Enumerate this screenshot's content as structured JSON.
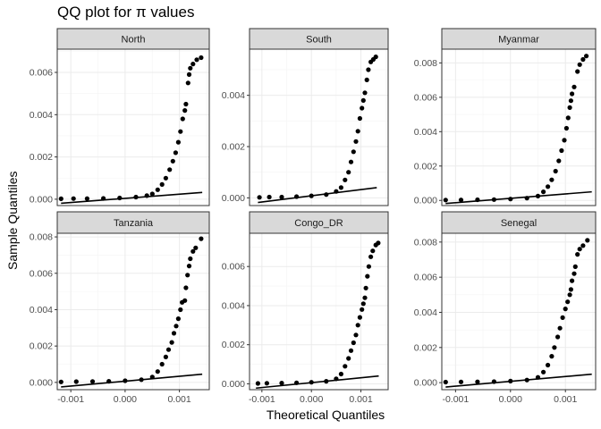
{
  "chart_data": {
    "type": "scatter",
    "title": "QQ plot for π values",
    "xlabel": "Theoretical Quantiles",
    "ylabel": "Sample Quantiles",
    "grid": true,
    "legend": "none",
    "xlim": [
      -0.00125,
      0.00155
    ],
    "xticks": [
      -0.001,
      0.0,
      0.001
    ],
    "xtick_labels": [
      "-0.001",
      "0.000",
      "0.001"
    ],
    "panels": [
      {
        "name": "North",
        "ylim": [
          -0.0003,
          0.0071
        ],
        "yticks": [
          0.0,
          0.002,
          0.004,
          0.006
        ],
        "ytick_labels": [
          "0.000",
          "0.002",
          "0.004",
          "0.006"
        ],
        "line": [
          [
            -0.00118,
            -0.00019
          ],
          [
            0.00142,
            0.00032
          ]
        ],
        "points": [
          [
            -0.00118,
            2e-05
          ],
          [
            -0.00095,
            3e-05
          ],
          [
            -0.0007,
            3e-05
          ],
          [
            -0.0004,
            4e-05
          ],
          [
            -0.0001,
            6e-05
          ],
          [
            0.0002,
            0.0001
          ],
          [
            0.0004,
            0.00017
          ],
          [
            0.0005,
            0.00025
          ],
          [
            0.0006,
            0.00045
          ],
          [
            0.00068,
            0.0007
          ],
          [
            0.00075,
            0.001
          ],
          [
            0.00082,
            0.0014
          ],
          [
            0.00088,
            0.0018
          ],
          [
            0.00093,
            0.0022
          ],
          [
            0.00098,
            0.0027
          ],
          [
            0.00102,
            0.0032
          ],
          [
            0.00106,
            0.0038
          ],
          [
            0.0011,
            0.0042
          ],
          [
            0.00112,
            0.0045
          ],
          [
            0.00116,
            0.0055
          ],
          [
            0.00118,
            0.0059
          ],
          [
            0.0012,
            0.0062
          ],
          [
            0.00125,
            0.0064
          ],
          [
            0.00132,
            0.0066
          ],
          [
            0.0014,
            0.0067
          ]
        ]
      },
      {
        "name": "South",
        "ylim": [
          -0.0003,
          0.0058
        ],
        "yticks": [
          0.0,
          0.002,
          0.004
        ],
        "ytick_labels": [
          "0.000",
          "0.002",
          "0.004"
        ],
        "line": [
          [
            -0.00108,
            -0.00018
          ],
          [
            0.00132,
            0.0004
          ]
        ],
        "points": [
          [
            -0.00105,
            2e-05
          ],
          [
            -0.00085,
            3e-05
          ],
          [
            -0.0006,
            3e-05
          ],
          [
            -0.0003,
            5e-05
          ],
          [
            0.0,
            8e-05
          ],
          [
            0.0003,
            0.00013
          ],
          [
            0.0005,
            0.00025
          ],
          [
            0.0006,
            0.0004
          ],
          [
            0.00068,
            0.0007
          ],
          [
            0.00075,
            0.001
          ],
          [
            0.0008,
            0.0014
          ],
          [
            0.00085,
            0.0018
          ],
          [
            0.0009,
            0.0022
          ],
          [
            0.00094,
            0.0026
          ],
          [
            0.00098,
            0.0031
          ],
          [
            0.00102,
            0.0035
          ],
          [
            0.00105,
            0.0038
          ],
          [
            0.00108,
            0.0041
          ],
          [
            0.00112,
            0.0046
          ],
          [
            0.00115,
            0.005
          ],
          [
            0.0012,
            0.0053
          ],
          [
            0.00125,
            0.0054
          ],
          [
            0.0013,
            0.0055
          ]
        ]
      },
      {
        "name": "Myanmar",
        "ylim": [
          -0.0003,
          0.0088
        ],
        "yticks": [
          0.0,
          0.002,
          0.004,
          0.006,
          0.008
        ],
        "ytick_labels": [
          "0.000",
          "0.002",
          "0.004",
          "0.006",
          "0.008"
        ],
        "line": [
          [
            -0.00118,
            -0.00018
          ],
          [
            0.00148,
            0.0005
          ]
        ],
        "points": [
          [
            -0.00118,
            2e-05
          ],
          [
            -0.0009,
            3e-05
          ],
          [
            -0.0006,
            4e-05
          ],
          [
            -0.0003,
            5e-05
          ],
          [
            0.0,
            8e-05
          ],
          [
            0.0003,
            0.00013
          ],
          [
            0.0005,
            0.00025
          ],
          [
            0.0006,
            0.0005
          ],
          [
            0.00068,
            0.0008
          ],
          [
            0.00075,
            0.0012
          ],
          [
            0.00082,
            0.0017
          ],
          [
            0.00088,
            0.0023
          ],
          [
            0.00093,
            0.0029
          ],
          [
            0.00098,
            0.0035
          ],
          [
            0.00102,
            0.0042
          ],
          [
            0.00105,
            0.0048
          ],
          [
            0.00108,
            0.0054
          ],
          [
            0.0011,
            0.0058
          ],
          [
            0.00112,
            0.0062
          ],
          [
            0.00116,
            0.0066
          ],
          [
            0.00122,
            0.0075
          ],
          [
            0.00126,
            0.0079
          ],
          [
            0.00132,
            0.0082
          ],
          [
            0.00138,
            0.0084
          ]
        ]
      },
      {
        "name": "Tanzania",
        "ylim": [
          -0.0004,
          0.0082
        ],
        "yticks": [
          0.0,
          0.002,
          0.004,
          0.006,
          0.008
        ],
        "ytick_labels": [
          "0.000",
          "0.002",
          "0.004",
          "0.006",
          "0.008"
        ],
        "line": [
          [
            -0.00118,
            -0.00025
          ],
          [
            0.00142,
            0.00045
          ]
        ],
        "points": [
          [
            -0.00118,
            3e-05
          ],
          [
            -0.0009,
            4e-05
          ],
          [
            -0.0006,
            5e-05
          ],
          [
            -0.0003,
            6e-05
          ],
          [
            0.0,
            9e-05
          ],
          [
            0.0003,
            0.00015
          ],
          [
            0.0005,
            0.0003
          ],
          [
            0.0006,
            0.0006
          ],
          [
            0.00068,
            0.001
          ],
          [
            0.00075,
            0.0014
          ],
          [
            0.0008,
            0.0018
          ],
          [
            0.00086,
            0.0022
          ],
          [
            0.0009,
            0.0027
          ],
          [
            0.00094,
            0.0031
          ],
          [
            0.00098,
            0.0035
          ],
          [
            0.00102,
            0.004
          ],
          [
            0.00105,
            0.0044
          ],
          [
            0.0011,
            0.0045
          ],
          [
            0.00112,
            0.0052
          ],
          [
            0.00115,
            0.0059
          ],
          [
            0.00118,
            0.0064
          ],
          [
            0.0012,
            0.0068
          ],
          [
            0.00125,
            0.0072
          ],
          [
            0.0013,
            0.0074
          ],
          [
            0.0014,
            0.0079
          ]
        ]
      },
      {
        "name": "Congo_DR",
        "ylim": [
          -0.0003,
          0.0077
        ],
        "yticks": [
          0.0,
          0.002,
          0.004,
          0.006
        ],
        "ytick_labels": [
          "0.000",
          "0.002",
          "0.004",
          "0.006"
        ],
        "line": [
          [
            -0.00112,
            -0.00022
          ],
          [
            0.00136,
            0.0004
          ]
        ],
        "points": [
          [
            -0.00108,
            2e-05
          ],
          [
            -0.0009,
            3e-05
          ],
          [
            -0.0006,
            4e-05
          ],
          [
            -0.0003,
            5e-05
          ],
          [
            0.0,
            8e-05
          ],
          [
            0.0003,
            0.00013
          ],
          [
            0.0005,
            0.00026
          ],
          [
            0.0006,
            0.0005
          ],
          [
            0.00068,
            0.0009
          ],
          [
            0.00075,
            0.0013
          ],
          [
            0.0008,
            0.0017
          ],
          [
            0.00085,
            0.0021
          ],
          [
            0.0009,
            0.0025
          ],
          [
            0.00094,
            0.003
          ],
          [
            0.00098,
            0.0034
          ],
          [
            0.00102,
            0.0038
          ],
          [
            0.00105,
            0.0041
          ],
          [
            0.00108,
            0.0044
          ],
          [
            0.0011,
            0.0049
          ],
          [
            0.00113,
            0.0055
          ],
          [
            0.00116,
            0.006
          ],
          [
            0.0012,
            0.0065
          ],
          [
            0.00124,
            0.0068
          ],
          [
            0.0013,
            0.0071
          ],
          [
            0.00135,
            0.0072
          ]
        ]
      },
      {
        "name": "Senegal",
        "ylim": [
          -0.0004,
          0.0085
        ],
        "yticks": [
          0.0,
          0.002,
          0.004,
          0.006,
          0.008
        ],
        "ytick_labels": [
          "0.000",
          "0.002",
          "0.004",
          "0.006",
          "0.008"
        ],
        "line": [
          [
            -0.00118,
            -0.00025
          ],
          [
            0.00148,
            0.00048
          ]
        ],
        "points": [
          [
            -0.00118,
            3e-05
          ],
          [
            -0.0009,
            4e-05
          ],
          [
            -0.0006,
            5e-05
          ],
          [
            -0.0003,
            6e-05
          ],
          [
            0.0,
            9e-05
          ],
          [
            0.0003,
            0.00015
          ],
          [
            0.0005,
            0.0003
          ],
          [
            0.0006,
            0.0006
          ],
          [
            0.00068,
            0.001
          ],
          [
            0.00075,
            0.0015
          ],
          [
            0.0008,
            0.002
          ],
          [
            0.00086,
            0.0026
          ],
          [
            0.0009,
            0.0031
          ],
          [
            0.00095,
            0.0037
          ],
          [
            0.001,
            0.0042
          ],
          [
            0.00104,
            0.0046
          ],
          [
            0.00108,
            0.005
          ],
          [
            0.0011,
            0.0053
          ],
          [
            0.00112,
            0.0058
          ],
          [
            0.00116,
            0.0062
          ],
          [
            0.00118,
            0.0066
          ],
          [
            0.00122,
            0.0073
          ],
          [
            0.00126,
            0.0076
          ],
          [
            0.00132,
            0.0078
          ],
          [
            0.0014,
            0.0081
          ]
        ]
      }
    ]
  }
}
